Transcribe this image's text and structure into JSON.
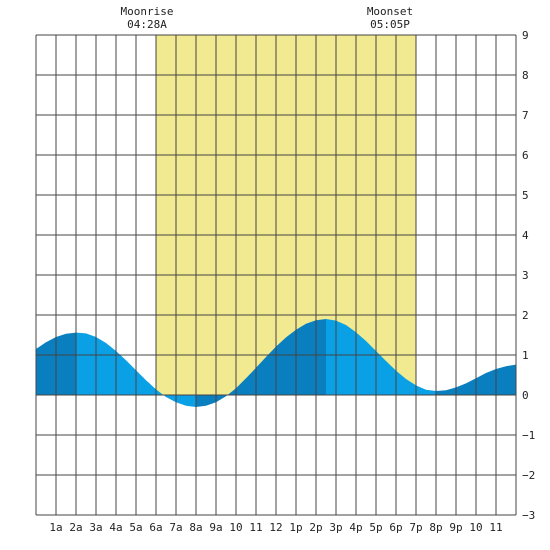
{
  "chart_data": {
    "type": "area",
    "title": "",
    "xlabel": "",
    "ylabel": "",
    "x_tick_labels": [
      "1a",
      "2a",
      "3a",
      "4a",
      "5a",
      "6a",
      "7a",
      "8a",
      "9a",
      "10",
      "11",
      "12",
      "1p",
      "2p",
      "3p",
      "4p",
      "5p",
      "6p",
      "7p",
      "8p",
      "9p",
      "10",
      "11"
    ],
    "y_tick_labels": [
      "9",
      "8",
      "7",
      "6",
      "5",
      "4",
      "3",
      "2",
      "1",
      "0",
      "−1",
      "−2",
      "−3"
    ],
    "xlim": [
      0,
      24
    ],
    "ylim": [
      -3,
      9
    ],
    "y_ticks": [
      9,
      8,
      7,
      6,
      5,
      4,
      3,
      2,
      1,
      0,
      -1,
      -2,
      -3
    ],
    "grid": true,
    "moonrise": {
      "label": "Moonrise",
      "time": "04:28A"
    },
    "moonset": {
      "label": "Moonset",
      "time": "05:05P"
    },
    "daylight_band_hours": [
      6.0,
      19.0
    ],
    "series": [
      {
        "x": [
          0,
          0.5,
          1,
          1.5,
          2,
          2.5,
          3,
          3.5,
          4,
          4.5,
          5,
          5.5,
          6,
          6.5,
          7,
          7.5,
          8,
          8.5,
          9,
          9.5,
          10,
          10.5,
          11,
          11.5,
          12,
          12.5,
          13,
          13.5,
          14,
          14.5,
          15,
          15.5,
          16,
          16.5,
          17,
          17.5,
          18,
          18.5,
          19,
          19.5,
          20,
          20.5,
          21,
          21.5,
          22,
          22.5,
          23,
          23.5,
          24
        ],
        "values": [
          1.15,
          1.32,
          1.45,
          1.53,
          1.56,
          1.54,
          1.45,
          1.3,
          1.1,
          0.87,
          0.62,
          0.37,
          0.14,
          -0.05,
          -0.18,
          -0.27,
          -0.3,
          -0.27,
          -0.18,
          -0.03,
          0.17,
          0.42,
          0.68,
          0.95,
          1.21,
          1.44,
          1.63,
          1.78,
          1.87,
          1.9,
          1.86,
          1.75,
          1.57,
          1.35,
          1.1,
          0.85,
          0.61,
          0.4,
          0.24,
          0.13,
          0.1,
          0.12,
          0.19,
          0.29,
          0.42,
          0.55,
          0.65,
          0.72,
          0.76
        ]
      }
    ],
    "colors": {
      "daylight": "#f2ea90",
      "tide_light": "#0aa0e6",
      "tide_dark": "#0a7fbf",
      "grid": "#444444",
      "background": "#ffffff"
    }
  }
}
